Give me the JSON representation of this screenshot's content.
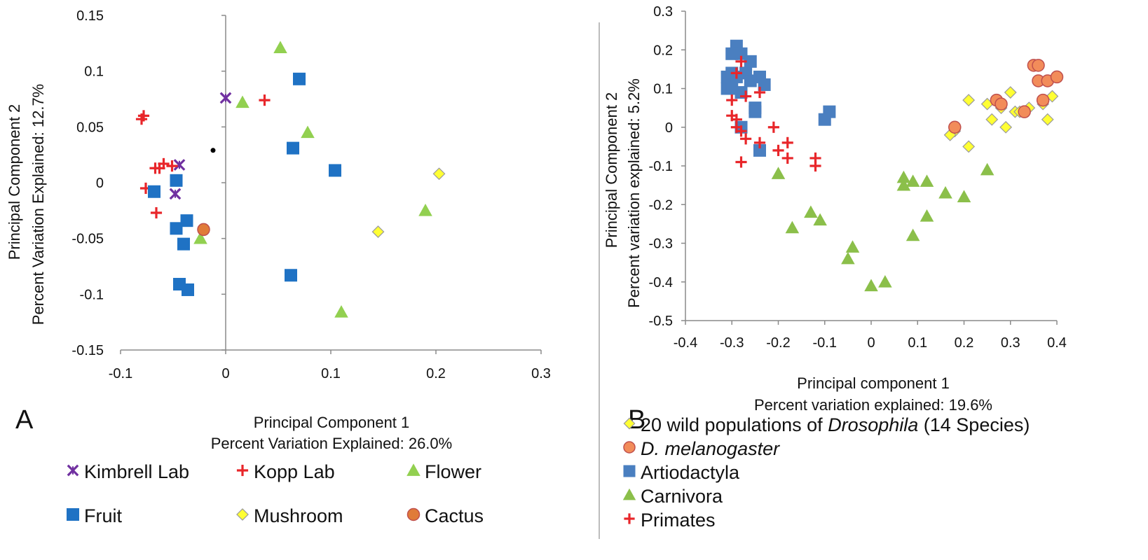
{
  "chart_data": [
    {
      "panel": "A",
      "type": "scatter",
      "xlabel": "Principal Component 1",
      "xlabel2": "Percent Variation Explained: 26.0%",
      "ylabel": "Principal Component 2",
      "ylabel2": "Percent Variation Explained: 12.7%",
      "xlim": [
        -0.1,
        0.3
      ],
      "ylim": [
        -0.15,
        0.15
      ],
      "xticks": [
        "-0.1",
        "0",
        "0.1",
        "0.2",
        "0.3"
      ],
      "yticks": [
        "0.15",
        "0.1",
        "0.05",
        "0",
        "-0.05",
        "-0.1",
        "-0.15"
      ],
      "legend": "bottom",
      "series": [
        {
          "name": "Kimbrell Lab",
          "marker": "x-star",
          "color": "#7030a0",
          "x": [
            0.0,
            -0.044,
            -0.048
          ],
          "y": [
            0.076,
            0.016,
            -0.01
          ]
        },
        {
          "name": "Kopp Lab",
          "marker": "plus",
          "color": "#e8262a",
          "x": [
            0.037,
            -0.08,
            -0.078,
            -0.059,
            -0.063,
            -0.051,
            -0.067,
            -0.076,
            -0.066
          ],
          "y": [
            0.074,
            0.057,
            0.06,
            0.017,
            0.013,
            0.015,
            0.013,
            -0.005,
            -0.027
          ]
        },
        {
          "name": "Flower",
          "marker": "triangle",
          "color": "#92d050",
          "x": [
            0.052,
            0.016,
            0.078,
            0.19,
            -0.024,
            0.11
          ],
          "y": [
            0.121,
            0.072,
            0.045,
            -0.025,
            -0.05,
            -0.116
          ]
        },
        {
          "name": "Fruit",
          "marker": "square",
          "color": "#1f72c4",
          "x": [
            0.07,
            0.064,
            0.104,
            -0.047,
            -0.068,
            -0.037,
            -0.047,
            -0.04,
            -0.044,
            -0.036,
            0.062
          ],
          "y": [
            0.093,
            0.031,
            0.011,
            0.002,
            -0.008,
            -0.034,
            -0.041,
            -0.055,
            -0.091,
            -0.096,
            -0.083
          ]
        },
        {
          "name": "Mushroom",
          "marker": "diamond",
          "color": "#ffff33",
          "x": [
            0.203,
            0.145
          ],
          "y": [
            0.008,
            -0.044
          ]
        },
        {
          "name": "Cactus",
          "marker": "circle",
          "color": "#e07b39",
          "x": [
            -0.021
          ],
          "y": [
            -0.042
          ]
        },
        {
          "name": "",
          "marker": "dot",
          "color": "#000000",
          "x": [
            -0.012
          ],
          "y": [
            0.029
          ]
        }
      ]
    },
    {
      "panel": "B",
      "type": "scatter",
      "xlabel": "Principal component 1",
      "xlabel2": "Percent variation explained: 19.6%",
      "ylabel": "Principal Component  2",
      "ylabel2": "Percent variation explained: 5.2%",
      "xlim": [
        -0.4,
        0.4
      ],
      "ylim": [
        -0.5,
        0.3
      ],
      "xticks": [
        "-0.4",
        "-0.3",
        "-0.2",
        "-0.1",
        "0",
        "0.1",
        "0.2",
        "0.3",
        "0.4"
      ],
      "yticks": [
        "0.3",
        "0.2",
        "0.1",
        "0",
        "-0.1",
        "-0.2",
        "-0.3",
        "-0.4",
        "-0.5"
      ],
      "legend": "bottom-left",
      "series": [
        {
          "name_prefix": "20 wild populations of ",
          "name_italic": "Drosophila",
          "name_suffix": " (14 Species)",
          "marker": "diamond",
          "color": "#ffff33",
          "x": [
            0.21,
            0.3,
            0.25,
            0.28,
            0.31,
            0.37,
            0.39,
            0.38,
            0.26,
            0.29,
            0.18,
            0.17,
            0.21,
            0.28,
            0.34,
            0.32
          ],
          "y": [
            0.07,
            0.09,
            0.06,
            0.05,
            0.04,
            0.06,
            0.08,
            0.02,
            0.02,
            0.0,
            -0.01,
            -0.02,
            -0.05,
            0.06,
            0.05,
            0.04
          ]
        },
        {
          "name_italic": "D. melanogaster",
          "marker": "circle",
          "color": "#f28c5a",
          "x": [
            0.35,
            0.36,
            0.36,
            0.38,
            0.4,
            0.27,
            0.28,
            0.18,
            0.33,
            0.37
          ],
          "y": [
            0.16,
            0.16,
            0.12,
            0.12,
            0.13,
            0.07,
            0.06,
            0.0,
            0.04,
            0.07
          ]
        },
        {
          "name": "Artiodactyla",
          "marker": "square",
          "color": "#4a7fc0",
          "x": [
            -0.29,
            -0.3,
            -0.28,
            -0.26,
            -0.31,
            -0.3,
            -0.29,
            -0.27,
            -0.24,
            -0.23,
            -0.31,
            -0.3,
            -0.28,
            -0.26,
            -0.25,
            -0.25,
            -0.09,
            -0.1,
            -0.24,
            -0.28
          ],
          "y": [
            0.21,
            0.19,
            0.19,
            0.17,
            0.13,
            0.14,
            0.13,
            0.14,
            0.13,
            0.11,
            0.1,
            0.1,
            0.09,
            0.12,
            0.05,
            0.04,
            0.04,
            0.02,
            -0.06,
            0.0
          ]
        },
        {
          "name": "Carnivora",
          "marker": "triangle",
          "color": "#8bbf4a",
          "x": [
            -0.2,
            0.07,
            0.09,
            0.12,
            0.07,
            0.25,
            0.16,
            0.2,
            -0.17,
            -0.13,
            -0.11,
            0.12,
            0.09,
            -0.04,
            -0.05,
            0.0,
            0.03
          ],
          "y": [
            -0.12,
            -0.13,
            -0.14,
            -0.14,
            -0.15,
            -0.11,
            -0.17,
            -0.18,
            -0.26,
            -0.22,
            -0.24,
            -0.23,
            -0.28,
            -0.31,
            -0.34,
            -0.41,
            -0.4
          ]
        },
        {
          "name": "Primates",
          "marker": "plus",
          "color": "#e8262a",
          "x": [
            -0.28,
            -0.29,
            -0.27,
            -0.24,
            -0.3,
            -0.29,
            -0.3,
            -0.29,
            -0.28,
            -0.27,
            -0.21,
            -0.24,
            -0.18,
            -0.2,
            -0.18,
            -0.12,
            -0.12,
            -0.28
          ],
          "y": [
            0.17,
            0.14,
            0.08,
            0.09,
            0.07,
            0.02,
            0.03,
            0.0,
            -0.01,
            -0.03,
            0.0,
            -0.04,
            -0.04,
            -0.06,
            -0.08,
            -0.08,
            -0.1,
            -0.09
          ]
        }
      ]
    }
  ]
}
